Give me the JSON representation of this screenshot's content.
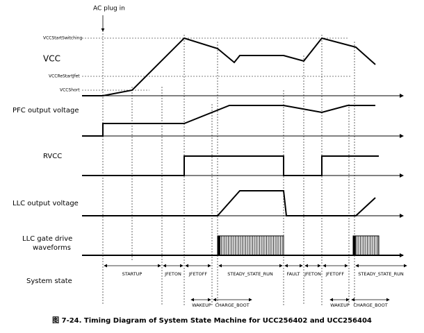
{
  "marker": "AC plug in",
  "levels": [
    "VCCStartSwitching",
    "VCCReStartJfet",
    "VCCShort"
  ],
  "signals": [
    "VCC",
    "PFC output voltage",
    "RVCC",
    "LLC output voltage",
    "LLC gate drive",
    "waveforms",
    "System state"
  ],
  "states": [
    "STARTUP",
    "JFETON",
    "JFETOFF",
    "STEADY_STATE_RUN",
    "FAULT",
    "JFETON",
    "JFETOFF",
    "STEADY_STATE_RUN"
  ],
  "substates": [
    "WAKEUP",
    "CHARGE_BOOT",
    "WAKEUP",
    "CHARGE_BOOT"
  ],
  "caption": "图 7-24. Timing Diagram of System State Machine for UCC256402 and UCC256404"
}
